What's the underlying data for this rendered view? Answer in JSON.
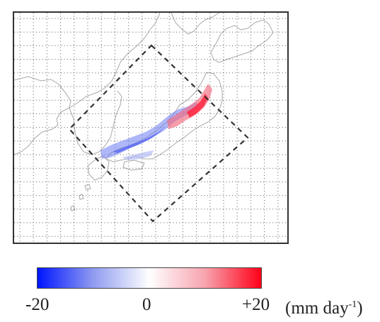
{
  "map": {
    "grid": "dotted",
    "domain_outline": "dashed-rotated-square",
    "region": "Japan",
    "colors": {
      "coast": "#a8a8a8",
      "grid": "#707070",
      "domain": "#333333",
      "negative": "#0015ff",
      "neutral": "#ffffff",
      "positive": "#ff0018"
    }
  },
  "colorbar": {
    "min_label": "-20",
    "mid_label": "0",
    "max_label": "+20",
    "unit_prefix": "(mm day",
    "unit_exp": "-1",
    "unit_suffix": ")",
    "min_value": -20,
    "max_value": 20
  }
}
